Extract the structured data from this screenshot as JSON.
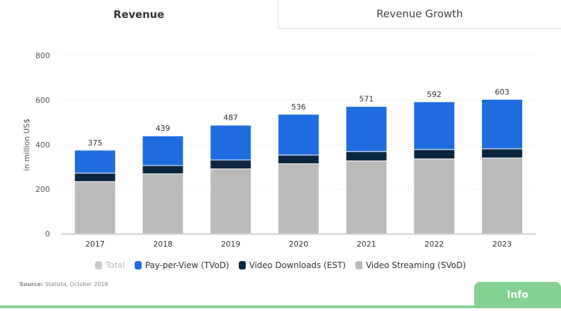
{
  "tabs": {
    "active": "Revenue",
    "other": "Revenue Growth"
  },
  "chart_data": {
    "type": "bar",
    "stacked": true,
    "categories": [
      "2017",
      "2018",
      "2019",
      "2020",
      "2021",
      "2022",
      "2023"
    ],
    "ylabel": "in million US$",
    "ylim": [
      0,
      800
    ],
    "yticks": [
      0,
      200,
      400,
      600,
      800
    ],
    "grid": true,
    "series": [
      {
        "name": "Video Streaming (SVoD)",
        "color": "#bababa",
        "values": [
          234,
          269,
          291,
          314,
          327,
          336,
          340
        ]
      },
      {
        "name": "Video Downloads (EST)",
        "color": "#0b2640",
        "values": [
          38,
          37,
          40,
          39,
          42,
          42,
          41
        ]
      },
      {
        "name": "Pay-per-View (TVoD)",
        "color": "#1e6ce0",
        "values": [
          103,
          133,
          156,
          183,
          202,
          214,
          222
        ]
      }
    ],
    "totals": [
      375,
      439,
      487,
      536,
      571,
      592,
      603
    ],
    "legend": [
      {
        "name": "Total",
        "color": "#cccccc",
        "disabled": true
      },
      {
        "name": "Pay-per-View (TVoD)",
        "color": "#1e6ce0"
      },
      {
        "name": "Video Downloads (EST)",
        "color": "#0b2640"
      },
      {
        "name": "Video Streaming (SVoD)",
        "color": "#bababa"
      }
    ],
    "legend_position": "bottom"
  },
  "source": {
    "label": "Source:",
    "text": "Statista, October 2018"
  },
  "info_button": "Info"
}
